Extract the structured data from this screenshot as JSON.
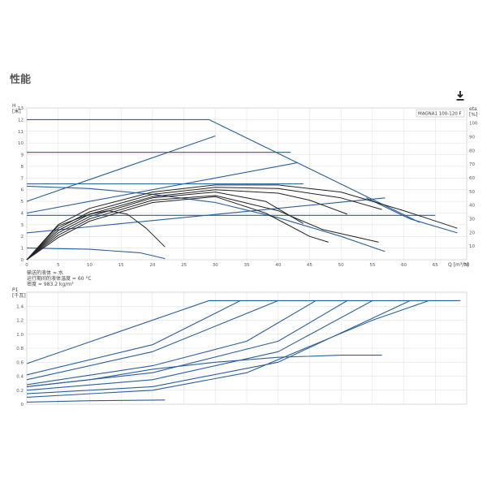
{
  "page": {
    "section_title": "性能",
    "download_icon": "download-icon"
  },
  "chart_data": [
    {
      "type": "line",
      "panel": "head",
      "model_label": "MAGNA1 100-120 F",
      "ylabel": "H\n[米]",
      "ylabel_right": "eta\n[%]",
      "xlabel": "Q [m³/h]",
      "xlim": [
        0,
        70
      ],
      "ylim": [
        0,
        13
      ],
      "ylim_right": [
        0,
        100
      ],
      "x_ticks": [
        0,
        5,
        10,
        15,
        20,
        25,
        30,
        35,
        40,
        45,
        50,
        55,
        60,
        65,
        70
      ],
      "y_ticks": [
        0,
        1,
        2,
        3,
        4,
        5,
        6,
        7,
        8,
        9,
        10,
        11,
        12,
        13
      ],
      "y_right_ticks": [
        10,
        20,
        30,
        40,
        50,
        60,
        70,
        80,
        90,
        100
      ],
      "grid": true,
      "notes": [
        "输送的液体 = 水",
        "运行期间的液体温度 = 60 °C",
        "密度 = 983.2 kg/m³"
      ],
      "series": [
        {
          "color": "#2a5f9e",
          "points": [
            [
              0,
              12
            ],
            [
              29,
              12
            ],
            [
              62.5,
              3.2
            ]
          ]
        },
        {
          "color": "#2a5f9e",
          "points": [
            [
              0,
              9.2
            ],
            [
              42,
              9.2
            ]
          ]
        },
        {
          "color": "#2a5f9e",
          "points": [
            [
              0,
              6.5
            ],
            [
              44,
              6.5
            ]
          ]
        },
        {
          "color": "#2a5f9e",
          "points": [
            [
              0,
              3.8
            ],
            [
              65,
              3.8
            ]
          ]
        },
        {
          "color": "#2a5f9e",
          "points": [
            [
              0,
              5.0
            ],
            [
              30,
              10.6
            ]
          ]
        },
        {
          "color": "#2a5f9e",
          "points": [
            [
              0,
              4.0
            ],
            [
              43,
              8.3
            ]
          ]
        },
        {
          "color": "#2a5f9e",
          "points": [
            [
              0,
              2.3
            ],
            [
              57,
              5.3
            ]
          ]
        },
        {
          "color": "#2a5f9e",
          "points": [
            [
              0,
              6.3
            ],
            [
              10,
              6.1
            ],
            [
              20,
              5.6
            ],
            [
              30,
              4.9
            ],
            [
              40,
              3.6
            ],
            [
              50,
              2.0
            ],
            [
              57,
              0.7
            ]
          ]
        },
        {
          "color": "#2a5f9e",
          "points": [
            [
              0,
              1.0
            ],
            [
              10,
              0.9
            ],
            [
              18,
              0.6
            ],
            [
              22,
              0.1
            ]
          ]
        },
        {
          "color": "#2a5f9e",
          "points": [
            [
              54,
              5.3
            ],
            [
              61,
              3.5
            ],
            [
              68.5,
              2.3
            ]
          ]
        },
        {
          "color": "#222222",
          "points": [
            [
              0,
              0
            ],
            [
              5,
              3.0
            ],
            [
              10,
              4.4
            ],
            [
              20,
              5.8
            ],
            [
              30,
              6.4
            ],
            [
              40,
              6.4
            ],
            [
              50,
              5.8
            ],
            [
              60,
              4.2
            ],
            [
              68.5,
              2.7
            ]
          ]
        },
        {
          "color": "#222222",
          "points": [
            [
              0,
              0
            ],
            [
              5,
              2.7
            ],
            [
              10,
              4.1
            ],
            [
              20,
              5.6
            ],
            [
              30,
              6.2
            ],
            [
              40,
              6.1
            ],
            [
              50,
              5.3
            ],
            [
              56.5,
              4.3
            ]
          ]
        },
        {
          "color": "#222222",
          "points": [
            [
              0,
              0
            ],
            [
              5,
              2.5
            ],
            [
              10,
              3.9
            ],
            [
              20,
              5.4
            ],
            [
              30,
              6.0
            ],
            [
              40,
              5.7
            ],
            [
              45,
              5.1
            ],
            [
              51,
              3.9
            ]
          ]
        },
        {
          "color": "#222222",
          "points": [
            [
              0,
              0
            ],
            [
              5,
              2.3
            ],
            [
              10,
              3.7
            ],
            [
              20,
              5.3
            ],
            [
              30,
              5.8
            ],
            [
              38,
              5.0
            ],
            [
              44,
              3.1
            ]
          ]
        },
        {
          "color": "#222222",
          "points": [
            [
              0,
              0
            ],
            [
              5,
              2.1
            ],
            [
              10,
              3.5
            ],
            [
              20,
              5.1
            ],
            [
              30,
              5.5
            ],
            [
              40,
              4.2
            ],
            [
              47,
              2.6
            ],
            [
              56,
              1.5
            ]
          ]
        },
        {
          "color": "#222222",
          "points": [
            [
              0,
              0
            ],
            [
              5,
              1.9
            ],
            [
              10,
              3.3
            ],
            [
              20,
              4.9
            ],
            [
              30,
              5.4
            ],
            [
              38,
              4.0
            ],
            [
              45,
              2.0
            ],
            [
              48,
              1.5
            ]
          ]
        },
        {
          "color": "#222222",
          "points": [
            [
              0,
              0
            ],
            [
              5,
              2.9
            ],
            [
              10,
              3.9
            ],
            [
              13,
              4.2
            ],
            [
              16,
              3.9
            ],
            [
              19,
              2.7
            ],
            [
              22,
              1.1
            ]
          ]
        }
      ]
    },
    {
      "type": "line",
      "panel": "power",
      "ylabel": "P1\n[千瓦]",
      "xlim": [
        0,
        70
      ],
      "ylim": [
        0,
        1.6
      ],
      "y_ticks": [
        0,
        0.2,
        0.4,
        0.6,
        0.8,
        1.0,
        1.2,
        1.4
      ],
      "y_tick_labels": [
        "0",
        "0.2",
        "0.4",
        "0.6",
        "0.8",
        "1.0",
        "1.2",
        "1.4"
      ],
      "grid": true,
      "series": [
        {
          "color": "#2a5f9e",
          "points": [
            [
              0,
              0.58
            ],
            [
              29,
              1.48
            ],
            [
              69,
              1.48
            ]
          ]
        },
        {
          "color": "#2a5f9e",
          "points": [
            [
              0,
              0.42
            ],
            [
              20,
              0.85
            ],
            [
              34,
              1.48
            ]
          ]
        },
        {
          "color": "#2a5f9e",
          "points": [
            [
              0,
              0.35
            ],
            [
              20,
              0.75
            ],
            [
              40,
              1.48
            ]
          ]
        },
        {
          "color": "#2a5f9e",
          "points": [
            [
              0,
              0.28
            ],
            [
              20,
              0.55
            ],
            [
              35,
              0.9
            ],
            [
              46,
              1.48
            ]
          ]
        },
        {
          "color": "#2a5f9e",
          "points": [
            [
              0,
              0.25
            ],
            [
              20,
              0.45
            ],
            [
              40,
              0.9
            ],
            [
              51,
              1.48
            ]
          ]
        },
        {
          "color": "#2a5f9e",
          "points": [
            [
              0,
              0.2
            ],
            [
              20,
              0.35
            ],
            [
              40,
              0.75
            ],
            [
              55,
              1.48
            ]
          ]
        },
        {
          "color": "#2a5f9e",
          "points": [
            [
              0,
              0.15
            ],
            [
              20,
              0.25
            ],
            [
              40,
              0.6
            ],
            [
              61,
              1.48
            ]
          ]
        },
        {
          "color": "#2a5f9e",
          "points": [
            [
              0,
              0.1
            ],
            [
              20,
              0.2
            ],
            [
              35,
              0.45
            ],
            [
              55,
              1.2
            ],
            [
              64,
              1.48
            ]
          ]
        },
        {
          "color": "#2a5f9e",
          "points": [
            [
              0,
              0.25
            ],
            [
              10,
              0.35
            ],
            [
              20,
              0.5
            ],
            [
              30,
              0.6
            ],
            [
              40,
              0.67
            ],
            [
              50,
              0.7
            ],
            [
              56.5,
              0.7
            ]
          ]
        },
        {
          "color": "#2a5f9e",
          "points": [
            [
              0,
              0.03
            ],
            [
              10,
              0.05
            ],
            [
              22,
              0.06
            ]
          ]
        }
      ]
    }
  ]
}
